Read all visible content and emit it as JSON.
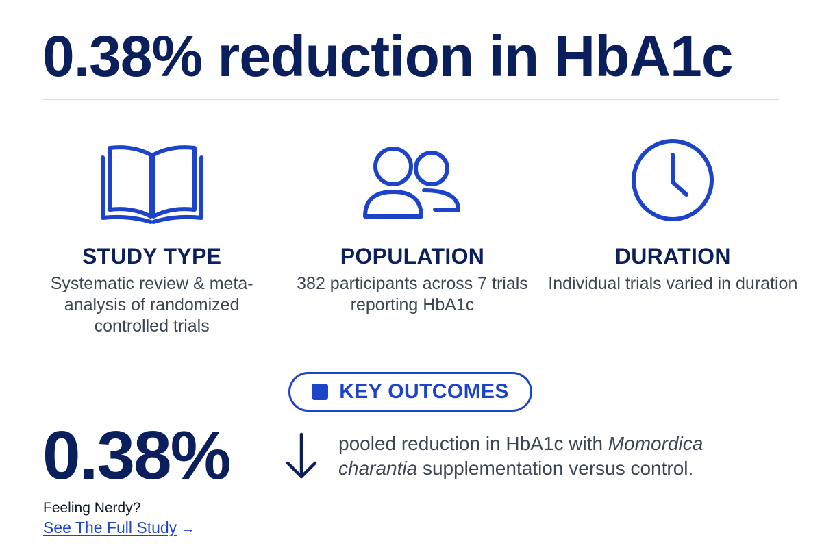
{
  "headline": "0.38% reduction in HbA1c",
  "colors": {
    "navy": "#0b1f5c",
    "accent_blue": "#1d43c8",
    "body_gray": "#3c4554",
    "divider": "#d6d9df"
  },
  "cards": [
    {
      "icon": "book-icon",
      "title": "STUDY TYPE",
      "description": "Systematic review & meta-analysis of randomized controlled trials"
    },
    {
      "icon": "users-icon",
      "title": "POPULATION",
      "description": "382 participants across 7 trials reporting HbA1c"
    },
    {
      "icon": "clock-icon",
      "title": "DURATION",
      "description": "Individual trials varied in duration"
    }
  ],
  "key_outcomes": {
    "label": "KEY OUTCOMES",
    "stat_value": "0.38%",
    "arrow_icon": "down-arrow-icon",
    "desc_before": "pooled reduction in HbA1c with ",
    "desc_italic": "Momordica charantia",
    "desc_after": " supplementation versus control."
  },
  "footer": {
    "prompt": "Feeling Nerdy?",
    "link_label": "See The Full Study",
    "link_arrow": "→"
  }
}
